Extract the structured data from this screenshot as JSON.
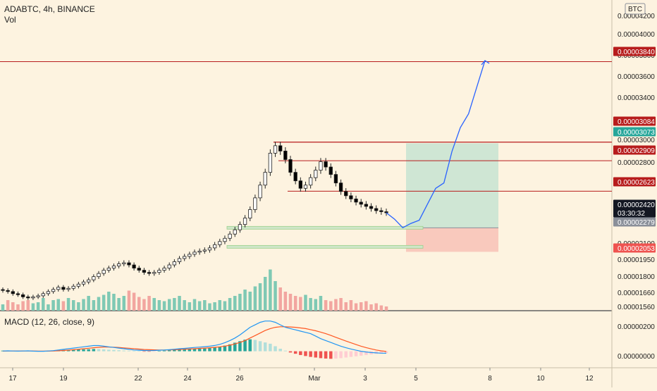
{
  "symbol_info": {
    "title": "ADABTC, 4h, BINANCE",
    "volume_label": "Vol",
    "currency": "BTC"
  },
  "macd_title": "MACD (12, 26, close, 9)",
  "price_axis": {
    "ticks": [
      "0.00004200",
      "0.00004000",
      "0.00003800",
      "0.00003600",
      "0.00003400",
      "0.00003000",
      "0.00002800",
      "0.00002600",
      "0.00002100",
      "0.00001950",
      "0.00001800",
      "0.00001660",
      "0.00001560"
    ]
  },
  "macd_axis": {
    "ticks": [
      "0.00000200",
      "0.00000000"
    ]
  },
  "time_axis": {
    "ticks": [
      "17",
      "19",
      "22",
      "24",
      "26",
      "Mar",
      "3",
      "5",
      "8",
      "10",
      "12"
    ]
  },
  "price_labels": [
    {
      "value": "0.00003840",
      "color": "#b71c1c",
      "text_color": "#ffffff"
    },
    {
      "value": "0.00003084",
      "color": "#b71c1c",
      "text_color": "#ffffff"
    },
    {
      "value": "0.00003073",
      "color": "#26a69a",
      "text_color": "#ffffff"
    },
    {
      "value": "0.00002909",
      "color": "#b71c1c",
      "text_color": "#ffffff"
    },
    {
      "value": "0.00002623",
      "color": "#b71c1c",
      "text_color": "#ffffff"
    },
    {
      "value": "0.00002420",
      "color": "#131722",
      "text_color": "#ffffff"
    },
    {
      "value": "03:30:32",
      "color": "#131722",
      "text_color": "#ffffff"
    },
    {
      "value": "0.00002279",
      "color": "#8a8f99",
      "text_color": "#ffffff"
    },
    {
      "value": "0.00002053",
      "color": "#ef5350",
      "text_color": "#ffffff"
    }
  ],
  "colors": {
    "background": "#fdf3e0",
    "up": "#ffffff",
    "down": "#000000",
    "vol_up": "#7fc9b4",
    "vol_down": "#f2a6a0",
    "resistance": "#b71c1c",
    "target_zone": "#cfe6d4",
    "stop_zone": "#f9c9bd",
    "projection": "#2962ff",
    "macd": "#2196f3",
    "signal": "#ff5722"
  },
  "chart_data": {
    "type": "candlestick",
    "instrument": "ADABTC",
    "interval": "4h",
    "exchange": "BINANCE",
    "y_unit": "BTC",
    "ylim": [
      1.5e-05,
      4.3e-05
    ],
    "horizontal_levels": [
      3.84e-05,
      3.084e-05,
      2.909e-05,
      2.623e-05
    ],
    "long_position": {
      "entry": 2.279e-05,
      "target": 3.073e-05,
      "stop": 2.053e-05
    },
    "last_price": 2.42e-05,
    "close_path": [
      1.69e-05,
      1.68e-05,
      1.66e-05,
      1.65e-05,
      1.63e-05,
      1.62e-05,
      1.63e-05,
      1.64e-05,
      1.66e-05,
      1.68e-05,
      1.7e-05,
      1.72e-05,
      1.7e-05,
      1.71e-05,
      1.73e-05,
      1.75e-05,
      1.77e-05,
      1.79e-05,
      1.82e-05,
      1.85e-05,
      1.88e-05,
      1.9e-05,
      1.92e-05,
      1.94e-05,
      1.95e-05,
      1.93e-05,
      1.9e-05,
      1.88e-05,
      1.86e-05,
      1.85e-05,
      1.86e-05,
      1.88e-05,
      1.9e-05,
      1.93e-05,
      1.96e-05,
      1.99e-05,
      2.01e-05,
      2.03e-05,
      2.05e-05,
      2.06e-05,
      2.07e-05,
      2.09e-05,
      2.12e-05,
      2.15e-05,
      2.18e-05,
      2.22e-05,
      2.26e-05,
      2.31e-05,
      2.37e-05,
      2.45e-05,
      2.56e-05,
      2.68e-05,
      2.8e-05,
      2.98e-05,
      3.05e-05,
      3e-05,
      2.92e-05,
      2.8e-05,
      2.72e-05,
      2.65e-05,
      2.68e-05,
      2.75e-05,
      2.82e-05,
      2.9e-05,
      2.85e-05,
      2.78e-05,
      2.7e-05,
      2.62e-05,
      2.58e-05,
      2.55e-05,
      2.52e-05,
      2.5e-05,
      2.48e-05,
      2.46e-05,
      2.44e-05,
      2.43e-05,
      2.42e-05
    ],
    "volume_rel": [
      0.3,
      0.5,
      0.4,
      0.3,
      0.45,
      0.5,
      0.35,
      0.4,
      0.6,
      0.3,
      0.5,
      0.55,
      0.45,
      0.6,
      0.5,
      0.4,
      0.55,
      0.7,
      0.5,
      0.65,
      0.75,
      0.9,
      0.8,
      0.6,
      0.7,
      0.95,
      0.85,
      0.65,
      0.55,
      0.7,
      0.6,
      0.5,
      0.45,
      0.55,
      0.6,
      0.7,
      0.5,
      0.4,
      0.55,
      0.45,
      0.5,
      0.35,
      0.4,
      0.5,
      0.45,
      0.6,
      0.7,
      0.8,
      1.0,
      0.9,
      1.15,
      1.3,
      1.6,
      1.95,
      1.4,
      1.1,
      0.9,
      0.8,
      0.7,
      0.65,
      0.75,
      0.6,
      0.55,
      0.7,
      0.5,
      0.45,
      0.55,
      0.6,
      0.4,
      0.5,
      0.35,
      0.4,
      0.45,
      0.3,
      0.35,
      0.25,
      0.2
    ],
    "macd_ylim": [
      -1.2e-06,
      3e-06
    ],
    "macd_histogram": [
      5e-08,
      6e-08,
      4e-08,
      3e-08,
      5e-08,
      4e-08,
      2e-08,
      1e-08,
      2e-08,
      4e-08,
      6e-08,
      8e-08,
      1e-07,
      1e-07,
      1.2e-07,
      1.4e-07,
      1.5e-07,
      1.6e-07,
      1.8e-07,
      1.7e-07,
      1.5e-07,
      1.2e-07,
      1e-07,
      8e-08,
      6e-08,
      4e-08,
      2e-08,
      1e-08,
      -2e-08,
      -3e-08,
      -2e-08,
      2e-08,
      5e-08,
      8e-08,
      1e-07,
      1.2e-07,
      1.5e-07,
      1.6e-07,
      1.8e-07,
      2e-07,
      2.2e-07,
      2.5e-07,
      3e-07,
      3.6e-07,
      4.5e-07,
      5.5e-07,
      6.8e-07,
      8e-07,
      9.2e-07,
      9.5e-07,
      9e-07,
      8e-07,
      7e-07,
      6e-07,
      4e-07,
      2e-07,
      5e-08,
      -1e-07,
      -2e-07,
      -3e-07,
      -3.8e-07,
      -4.5e-07,
      -5e-07,
      -5.5e-07,
      -5.8e-07,
      -6e-07,
      -5.8e-07,
      -5.5e-07,
      -5e-07,
      -4.5e-07,
      -4e-07,
      -3.5e-07,
      -3e-07,
      -2.5e-07,
      -2e-07,
      -1.8e-07,
      -1.5e-07
    ],
    "macd_line": [
      2e-08,
      3e-08,
      2e-08,
      1e-08,
      2e-08,
      3e-08,
      1e-08,
      0.0,
      0.0,
      2e-08,
      5e-08,
      1e-07,
      1.5e-07,
      2e-07,
      2.5e-07,
      3e-07,
      3.5e-07,
      4e-07,
      4.5e-07,
      4.5e-07,
      4e-07,
      3.5e-07,
      3e-07,
      2.5e-07,
      2e-07,
      1.5e-07,
      1e-07,
      8e-08,
      6e-08,
      5e-08,
      6e-08,
      8e-08,
      1e-07,
      1.3e-07,
      1.6e-07,
      2e-07,
      2.3e-07,
      2.6e-07,
      3e-07,
      3.3e-07,
      3.6e-07,
      4e-07,
      4.6e-07,
      5.5e-07,
      6.8e-07,
      8.5e-07,
      1.05e-06,
      1.3e-06,
      1.6e-06,
      1.9e-06,
      2.1e-06,
      2.3e-06,
      2.4e-06,
      2.4e-06,
      2.3e-06,
      2.1e-06,
      1.9e-06,
      1.8e-06,
      1.7e-06,
      1.6e-06,
      1.5e-06,
      1.4e-06,
      1.2e-06,
      1e-06,
      8.5e-07,
      7e-07,
      5.5e-07,
      4e-07,
      2.8e-07,
      1.8e-07,
      8e-08,
      0.0,
      -6e-08,
      -1e-07,
      -1.3e-07,
      -1.5e-07,
      -1.6e-07
    ],
    "signal_line": [
      1e-08,
      2e-08,
      2e-08,
      2e-08,
      2e-08,
      2e-08,
      2e-08,
      1e-08,
      1e-08,
      1e-08,
      2e-08,
      4e-08,
      6e-08,
      9e-08,
      1.2e-07,
      1.6e-07,
      2e-07,
      2.4e-07,
      2.8e-07,
      3.1e-07,
      3.3e-07,
      3.3e-07,
      3.2e-07,
      3e-07,
      2.7e-07,
      2.4e-07,
      2e-07,
      1.7e-07,
      1.4e-07,
      1.2e-07,
      1.1e-07,
      1e-07,
      1e-07,
      1.1e-07,
      1.2e-07,
      1.4e-07,
      1.6e-07,
      1.8e-07,
      2e-07,
      2.3e-07,
      2.5e-07,
      2.8e-07,
      3.1e-07,
      3.5e-07,
      4.1e-07,
      4.8e-07,
      5.8e-07,
      7e-07,
      8.5e-07,
      1.05e-06,
      1.25e-06,
      1.45e-06,
      1.65e-06,
      1.8e-06,
      1.9e-06,
      1.95e-06,
      1.95e-06,
      1.93e-06,
      1.9e-06,
      1.85e-06,
      1.8e-06,
      1.72e-06,
      1.63e-06,
      1.52e-06,
      1.4e-06,
      1.26e-06,
      1.11e-06,
      9.6e-07,
      8.1e-07,
      6.7e-07,
      5.3e-07,
      4e-07,
      2.9e-07,
      1.9e-07,
      1e-07,
      3e-08,
      -2e-08
    ],
    "projection_path": [
      2.42e-05,
      2.36e-05,
      2.28e-05,
      2.32e-05,
      2.35e-05,
      2.5e-05,
      2.65e-05,
      2.7e-05,
      3e-05,
      3.22e-05,
      3.35e-05,
      3.6e-05,
      3.85e-05
    ]
  }
}
